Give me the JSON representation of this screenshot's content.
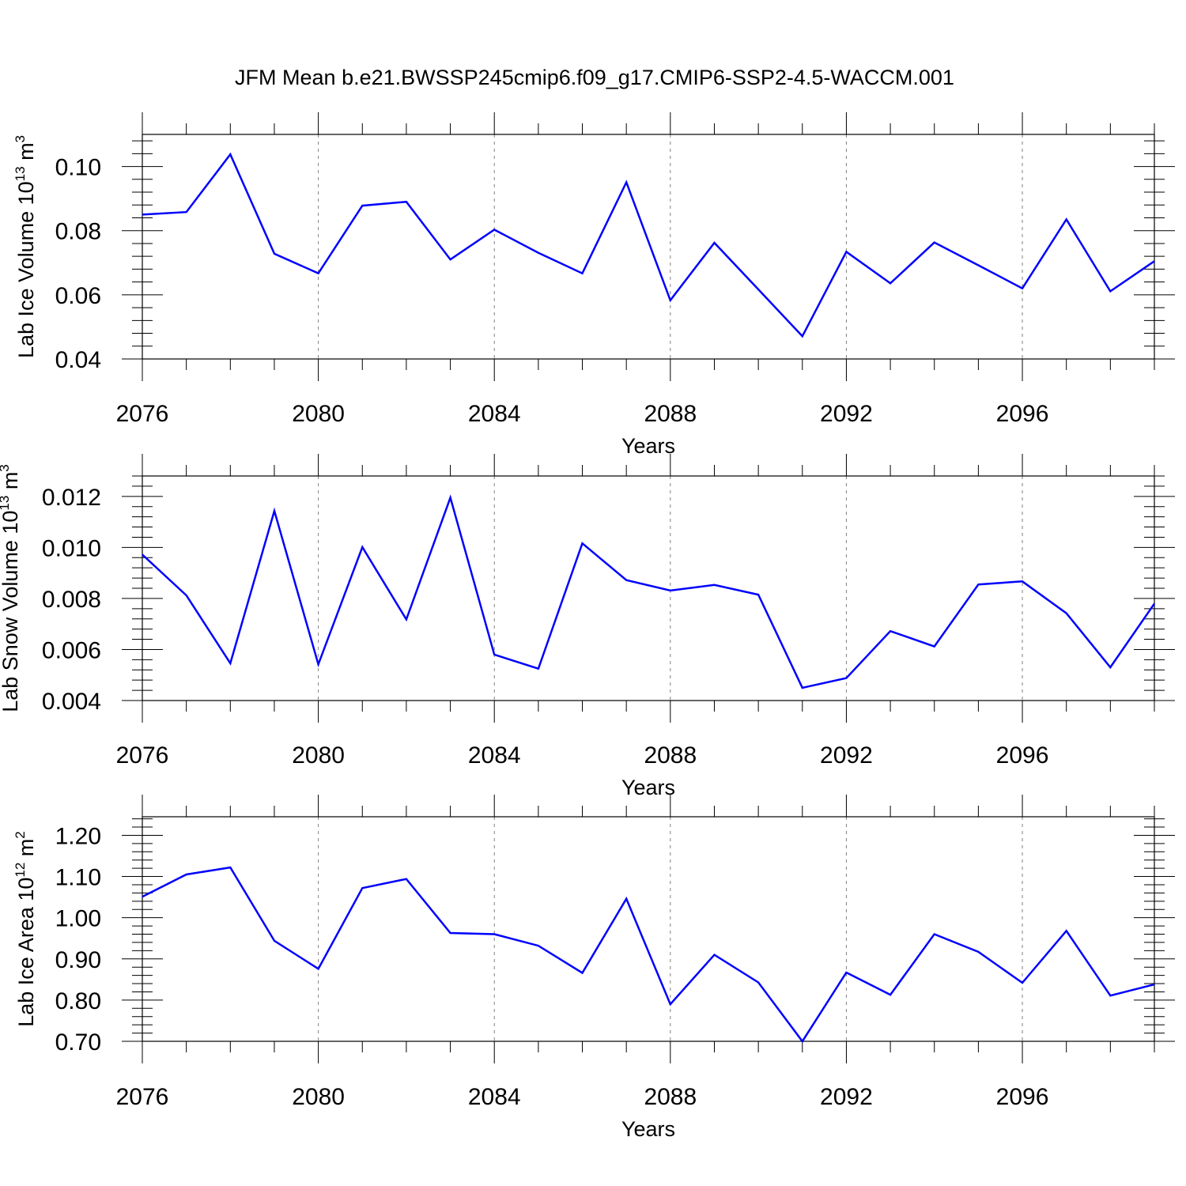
{
  "title": "JFM Mean b.e21.BWSSP245cmip6.f09_g17.CMIP6-SSP2-4.5-WACCM.001",
  "colors": {
    "line": "#0000ff",
    "axis": "#000000",
    "grid": "#808080"
  },
  "chart_data": [
    {
      "type": "line",
      "ylabel_main": "Lab Ice Volume 10",
      "ylabel_exp": "13",
      "ylabel_unit": "m",
      "ylabel_unit_exp": "3",
      "xlabel": "Years",
      "xlim": [
        2076,
        2099
      ],
      "ylim": [
        0.04,
        0.11
      ],
      "xticks": [
        2076,
        2080,
        2084,
        2088,
        2092,
        2096
      ],
      "xtick_labels": [
        "2076",
        "2080",
        "2084",
        "2088",
        "2092",
        "2096"
      ],
      "yticks": [
        0.04,
        0.06,
        0.08,
        0.1
      ],
      "ytick_labels": [
        "0.04",
        "0.06",
        "0.08",
        "0.10"
      ],
      "grid": "dashed vertical at major x ticks",
      "series": [
        {
          "name": "Lab Ice Volume",
          "x": [
            2076,
            2077,
            2078,
            2079,
            2080,
            2081,
            2082,
            2083,
            2084,
            2085,
            2086,
            2087,
            2088,
            2089,
            2090,
            2091,
            2092,
            2093,
            2094,
            2095,
            2096,
            2097,
            2098,
            2099
          ],
          "values": [
            0.085,
            0.0858,
            0.1038,
            0.0728,
            0.0667,
            0.0878,
            0.089,
            0.071,
            0.0803,
            0.0731,
            0.0667,
            0.0951,
            0.0583,
            0.0762,
            0.0617,
            0.0471,
            0.0734,
            0.0636,
            0.0763,
            0.0692,
            0.062,
            0.0835,
            0.0611,
            0.0705
          ]
        }
      ]
    },
    {
      "type": "line",
      "ylabel_main": "Lab Snow Volume 10",
      "ylabel_exp": "13",
      "ylabel_unit": "m",
      "ylabel_unit_exp": "3",
      "xlabel": "Years",
      "xlim": [
        2076,
        2099
      ],
      "ylim": [
        0.004,
        0.0128
      ],
      "xticks": [
        2076,
        2080,
        2084,
        2088,
        2092,
        2096
      ],
      "xtick_labels": [
        "2076",
        "2080",
        "2084",
        "2088",
        "2092",
        "2096"
      ],
      "yticks": [
        0.004,
        0.006,
        0.008,
        0.01,
        0.012
      ],
      "ytick_labels": [
        "0.004",
        "0.006",
        "0.008",
        "0.010",
        "0.012"
      ],
      "grid": "dashed vertical at major x ticks",
      "series": [
        {
          "name": "Lab Snow Volume",
          "x": [
            2076,
            2077,
            2078,
            2079,
            2080,
            2081,
            2082,
            2083,
            2084,
            2085,
            2086,
            2087,
            2088,
            2089,
            2090,
            2091,
            2092,
            2093,
            2094,
            2095,
            2096,
            2097,
            2098,
            2099
          ],
          "values": [
            0.00972,
            0.00812,
            0.00546,
            0.01143,
            0.00542,
            0.01001,
            0.00718,
            0.01195,
            0.0058,
            0.00525,
            0.01016,
            0.00872,
            0.00831,
            0.00853,
            0.00815,
            0.0045,
            0.00488,
            0.00672,
            0.00612,
            0.00855,
            0.00867,
            0.00742,
            0.0053,
            0.0078
          ]
        }
      ]
    },
    {
      "type": "line",
      "ylabel_main": "Lab Ice Area 10",
      "ylabel_exp": "12",
      "ylabel_unit": "m",
      "ylabel_unit_exp": "2",
      "xlabel": "Years",
      "xlim": [
        2076,
        2099
      ],
      "ylim": [
        0.7,
        1.245
      ],
      "xticks": [
        2076,
        2080,
        2084,
        2088,
        2092,
        2096
      ],
      "xtick_labels": [
        "2076",
        "2080",
        "2084",
        "2088",
        "2092",
        "2096"
      ],
      "yticks": [
        0.7,
        0.8,
        0.9,
        1.0,
        1.1,
        1.2
      ],
      "ytick_labels": [
        "0.70",
        "0.80",
        "0.90",
        "1.00",
        "1.10",
        "1.20"
      ],
      "grid": "dashed vertical at major x ticks",
      "series": [
        {
          "name": "Lab Ice Area",
          "x": [
            2076,
            2077,
            2078,
            2079,
            2080,
            2081,
            2082,
            2083,
            2084,
            2085,
            2086,
            2087,
            2088,
            2089,
            2090,
            2091,
            2092,
            2093,
            2094,
            2095,
            2096,
            2097,
            2098,
            2099
          ],
          "values": [
            1.051,
            1.105,
            1.122,
            0.944,
            0.876,
            1.072,
            1.094,
            0.963,
            0.96,
            0.932,
            0.866,
            1.046,
            0.79,
            0.91,
            0.843,
            0.7,
            0.867,
            0.813,
            0.96,
            0.917,
            0.842,
            0.968,
            0.811,
            0.838
          ]
        }
      ]
    }
  ]
}
